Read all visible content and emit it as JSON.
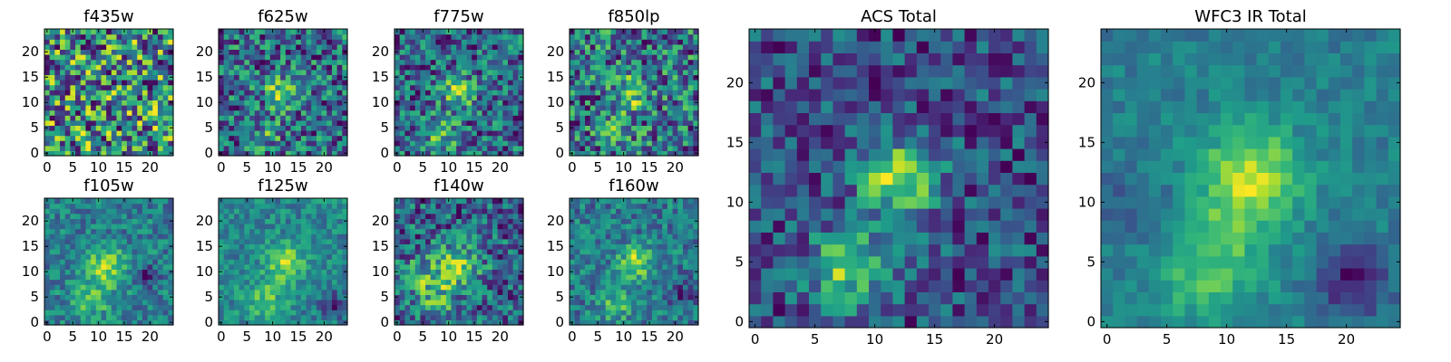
{
  "chart_data": [
    {
      "type": "heatmap",
      "title": "f435w",
      "xticks": [
        0,
        5,
        10,
        15,
        20
      ],
      "yticks": [
        0,
        5,
        10,
        15,
        20
      ],
      "xlim": [
        0,
        25
      ],
      "ylim": [
        0,
        25
      ],
      "grid": false,
      "colormap": "viridis",
      "seed": 11,
      "noise": 0.45,
      "blobs": []
    },
    {
      "type": "heatmap",
      "title": "f625w",
      "xticks": [
        0,
        5,
        10,
        15,
        20
      ],
      "yticks": [
        0,
        5,
        10,
        15,
        20
      ],
      "xlim": [
        0,
        25
      ],
      "ylim": [
        0,
        25
      ],
      "grid": false,
      "colormap": "viridis",
      "seed": 23,
      "noise": 0.35,
      "blobs": [
        {
          "x": 12.5,
          "y": 12.5,
          "sigma": 2.2,
          "amp": 0.45
        },
        {
          "x": 9,
          "y": 4,
          "sigma": 2.2,
          "amp": 0.2
        }
      ]
    },
    {
      "type": "heatmap",
      "title": "f775w",
      "xticks": [
        0,
        5,
        10,
        15,
        20
      ],
      "yticks": [
        0,
        5,
        10,
        15,
        20
      ],
      "xlim": [
        0,
        25
      ],
      "ylim": [
        0,
        25
      ],
      "grid": false,
      "colormap": "viridis",
      "seed": 37,
      "noise": 0.35,
      "blobs": [
        {
          "x": 12.5,
          "y": 12.5,
          "sigma": 2.3,
          "amp": 0.45
        },
        {
          "x": 9,
          "y": 4.5,
          "sigma": 2.2,
          "amp": 0.4
        }
      ]
    },
    {
      "type": "heatmap",
      "title": "f850lp",
      "xticks": [
        0,
        5,
        10,
        15,
        20
      ],
      "yticks": [
        0,
        5,
        10,
        15,
        20
      ],
      "xlim": [
        0,
        25
      ],
      "ylim": [
        0,
        25
      ],
      "grid": false,
      "colormap": "viridis",
      "seed": 41,
      "noise": 0.38,
      "blobs": [
        {
          "x": 12.5,
          "y": 12.5,
          "sigma": 2.2,
          "amp": 0.4
        },
        {
          "x": 9,
          "y": 5,
          "sigma": 2.2,
          "amp": 0.25
        }
      ]
    },
    {
      "type": "heatmap",
      "title": "f105w",
      "xticks": [
        0,
        5,
        10,
        15,
        20
      ],
      "yticks": [
        0,
        5,
        10,
        15,
        20
      ],
      "xlim": [
        0,
        25
      ],
      "ylim": [
        0,
        25
      ],
      "grid": false,
      "colormap": "viridis",
      "seed": 53,
      "noise": 0.28,
      "blobs": [
        {
          "x": 12,
          "y": 11.5,
          "sigma": 2.8,
          "amp": 0.55
        },
        {
          "x": 9,
          "y": 5,
          "sigma": 2.8,
          "amp": 0.35
        },
        {
          "x": 20,
          "y": 10,
          "sigma": 1.5,
          "amp": -0.4
        }
      ]
    },
    {
      "type": "heatmap",
      "title": "f125w",
      "xticks": [
        0,
        5,
        10,
        15,
        20
      ],
      "yticks": [
        0,
        5,
        10,
        15,
        20
      ],
      "xlim": [
        0,
        25
      ],
      "ylim": [
        0,
        25
      ],
      "grid": false,
      "colormap": "viridis",
      "seed": 61,
      "noise": 0.22,
      "blobs": [
        {
          "x": 13,
          "y": 12.5,
          "sigma": 2.6,
          "amp": 0.5
        },
        {
          "x": 9,
          "y": 5,
          "sigma": 2.8,
          "amp": 0.35
        },
        {
          "x": 22,
          "y": 4,
          "sigma": 1.8,
          "amp": -0.4
        }
      ]
    },
    {
      "type": "heatmap",
      "title": "f140w",
      "xticks": [
        0,
        5,
        10,
        15,
        20
      ],
      "yticks": [
        0,
        5,
        10,
        15,
        20
      ],
      "xlim": [
        0,
        25
      ],
      "ylim": [
        0,
        25
      ],
      "grid": false,
      "colormap": "viridis",
      "seed": 71,
      "noise": 0.35,
      "blobs": [
        {
          "x": 12.5,
          "y": 12,
          "sigma": 3.0,
          "amp": 0.45
        },
        {
          "x": 8,
          "y": 6,
          "sigma": 3.0,
          "amp": 0.35
        },
        {
          "x": 4,
          "y": 10,
          "sigma": 2.5,
          "amp": 0.25
        }
      ]
    },
    {
      "type": "heatmap",
      "title": "f160w",
      "xticks": [
        0,
        5,
        10,
        15,
        20
      ],
      "yticks": [
        0,
        5,
        10,
        15,
        20
      ],
      "xlim": [
        0,
        25
      ],
      "ylim": [
        0,
        25
      ],
      "grid": false,
      "colormap": "viridis",
      "seed": 83,
      "noise": 0.28,
      "blobs": [
        {
          "x": 13,
          "y": 12.5,
          "sigma": 2.4,
          "amp": 0.55
        },
        {
          "x": 9,
          "y": 4.5,
          "sigma": 2.5,
          "amp": 0.35
        },
        {
          "x": 22,
          "y": 6,
          "sigma": 1.8,
          "amp": -0.35
        }
      ]
    },
    {
      "type": "heatmap",
      "title": "ACS Total",
      "xticks": [
        0,
        5,
        10,
        15,
        20
      ],
      "yticks": [
        0,
        5,
        10,
        15,
        20
      ],
      "xlim": [
        0,
        25
      ],
      "ylim": [
        0,
        25
      ],
      "grid": false,
      "colormap": "viridis",
      "seed": 97,
      "noise": 0.22,
      "blobs": [
        {
          "x": 12.5,
          "y": 12.5,
          "sigma": 2.2,
          "amp": 0.55
        },
        {
          "x": 8.5,
          "y": 5,
          "sigma": 2.3,
          "amp": 0.45
        }
      ]
    },
    {
      "type": "heatmap",
      "title": "WFC3 IR Total",
      "xticks": [
        0,
        5,
        10,
        15,
        20
      ],
      "yticks": [
        0,
        5,
        10,
        15,
        20
      ],
      "xlim": [
        0,
        25
      ],
      "ylim": [
        0,
        25
      ],
      "grid": false,
      "colormap": "viridis",
      "seed": 109,
      "noise": 0.12,
      "blobs": [
        {
          "x": 12.5,
          "y": 12.5,
          "sigma": 3.0,
          "amp": 0.55
        },
        {
          "x": 9,
          "y": 5,
          "sigma": 3.2,
          "amp": 0.35
        },
        {
          "x": 21,
          "y": 4,
          "sigma": 2.0,
          "amp": -0.45
        },
        {
          "x": 3,
          "y": 10,
          "sigma": 2.5,
          "amp": -0.15
        }
      ]
    }
  ],
  "colors": {
    "viridis_stops": [
      "#440154",
      "#482878",
      "#3e4989",
      "#31688e",
      "#26828e",
      "#1f9e89",
      "#35b779",
      "#6ece58",
      "#b5de2b",
      "#fde725"
    ],
    "frame": "#000000",
    "background": "#ffffff"
  }
}
